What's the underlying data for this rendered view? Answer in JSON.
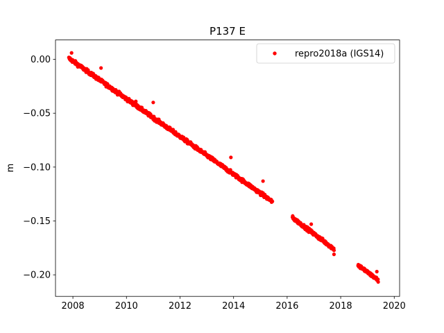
{
  "chart_data": {
    "type": "scatter",
    "title": "P137 E",
    "xlabel": "",
    "ylabel": "m",
    "xlim": [
      2007.35,
      2020.2
    ],
    "ylim": [
      -0.22,
      0.018
    ],
    "xticks": [
      2008,
      2010,
      2012,
      2014,
      2016,
      2018,
      2020
    ],
    "xtick_labels": [
      "2008",
      "2010",
      "2012",
      "2014",
      "2016",
      "2018",
      "2020"
    ],
    "yticks": [
      0.0,
      -0.05,
      -0.1,
      -0.15,
      -0.2
    ],
    "ytick_labels": [
      "0.00",
      "−0.05",
      "−0.10",
      "−0.15",
      "−0.20"
    ],
    "grid": false,
    "legend": {
      "position": "top-right",
      "entries": [
        "repro2018a (IGS14)"
      ]
    },
    "series": [
      {
        "name": "repro2018a (IGS14)",
        "color": "#ff0000",
        "marker": "dot",
        "segments": [
          {
            "x_start": 2007.85,
            "x_end": 2015.45,
            "y_start": 0.001,
            "y_end": -0.132
          },
          {
            "x_start": 2016.2,
            "x_end": 2017.75,
            "y_start": -0.147,
            "y_end": -0.176
          },
          {
            "x_start": 2018.65,
            "x_end": 2019.4,
            "y_start": -0.191,
            "y_end": -0.205
          }
        ],
        "outliers": [
          {
            "x": 2007.95,
            "y": 0.006
          },
          {
            "x": 2009.05,
            "y": -0.008
          },
          {
            "x": 2011.0,
            "y": -0.04
          },
          {
            "x": 2013.9,
            "y": -0.091
          },
          {
            "x": 2015.1,
            "y": -0.113
          },
          {
            "x": 2010.35,
            "y": -0.039
          },
          {
            "x": 2010.9,
            "y": -0.051
          },
          {
            "x": 2012.4,
            "y": -0.077
          },
          {
            "x": 2016.9,
            "y": -0.153
          },
          {
            "x": 2019.35,
            "y": -0.197
          },
          {
            "x": 2017.75,
            "y": -0.181
          }
        ]
      }
    ]
  }
}
